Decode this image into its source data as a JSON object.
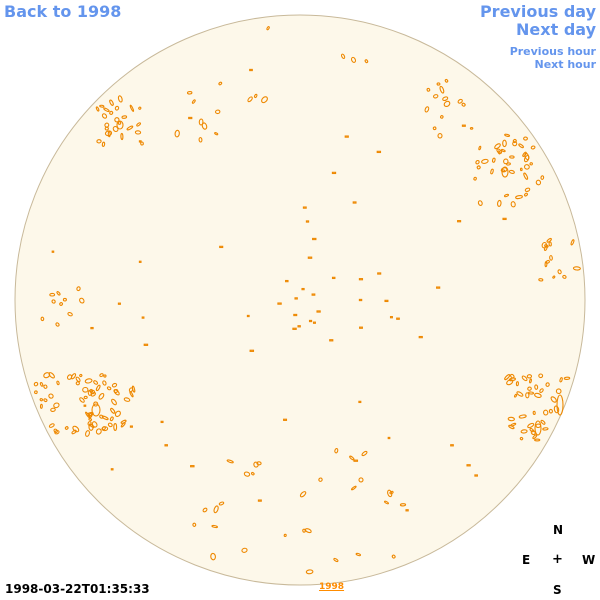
{
  "nav": {
    "back": "Back to 1998",
    "previous_day": "Previous day",
    "next_day": "Next day",
    "previous_hour": "Previous hour",
    "next_hour": "Next hour"
  },
  "footer": {
    "timestamp": "1998-03-22T01:35:33",
    "year_link": "1998"
  },
  "compass": {
    "north": "N",
    "east": "E",
    "center": "+",
    "west": "W",
    "south": "S"
  },
  "colors": {
    "link": "#6495ed",
    "disk_fill": "#fdf8ea",
    "disk_stroke": "#c8b99a",
    "contour": "#ee8800"
  }
}
